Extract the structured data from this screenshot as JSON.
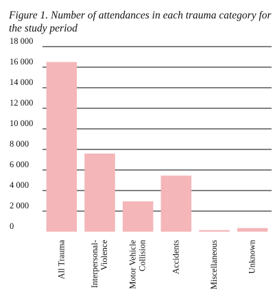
{
  "chart_data": {
    "type": "bar",
    "title": "Figure 1. Number of attendances in each trauma category for the study period",
    "xlabel": "",
    "ylabel": "",
    "ylim": [
      0,
      18000
    ],
    "yticks": [
      0,
      2000,
      4000,
      6000,
      8000,
      10000,
      12000,
      14000,
      16000,
      18000
    ],
    "ytick_labels": [
      "0",
      "2 000",
      "4 000",
      "6 000",
      "8 000",
      "10 000",
      "12 000",
      "14 000",
      "16 000",
      "18 000"
    ],
    "grid": true,
    "bar_color": "#f4b6b8",
    "categories": [
      [
        "All Trauma"
      ],
      [
        "Interpersonal-",
        "Violence"
      ],
      [
        "Motor Vehicle",
        "Collision"
      ],
      [
        "Accidents"
      ],
      [
        "Miscellaneous"
      ],
      [
        "Unknown"
      ]
    ],
    "values": [
      16500,
      7600,
      2950,
      5450,
      150,
      350
    ]
  }
}
